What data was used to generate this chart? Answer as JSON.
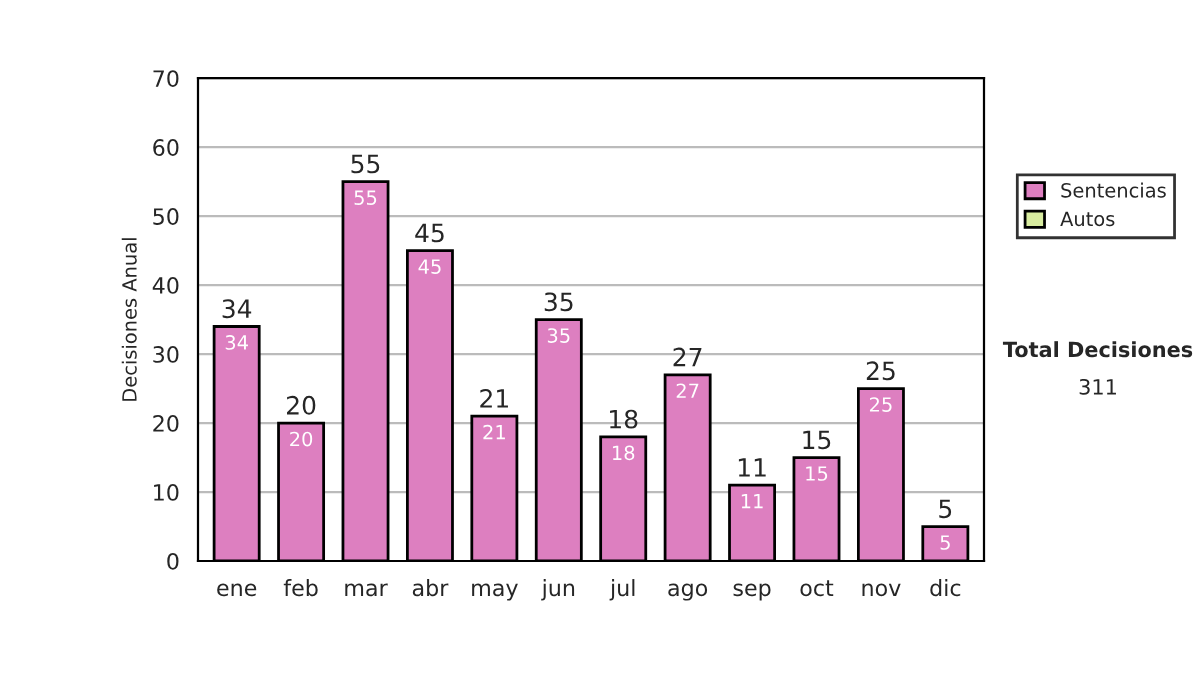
{
  "chart_data": {
    "type": "bar",
    "ylabel": "Decisiones Anual",
    "categories": [
      "ene",
      "feb",
      "mar",
      "abr",
      "may",
      "jun",
      "jul",
      "ago",
      "sep",
      "oct",
      "nov",
      "dic"
    ],
    "series": [
      {
        "name": "Sentencias",
        "color": "#dd7fc0",
        "values": [
          34,
          20,
          55,
          45,
          21,
          35,
          18,
          27,
          11,
          15,
          25,
          5
        ]
      },
      {
        "name": "Autos",
        "color": "#d8eca0",
        "values": [
          null,
          null,
          null,
          null,
          null,
          null,
          null,
          null,
          null,
          null,
          null,
          null
        ]
      }
    ],
    "stacked": true,
    "data_labels": true,
    "totals": [
      "34",
      "20",
      "55",
      "45",
      "21",
      "35",
      "18",
      "27",
      "11",
      "15",
      "25",
      "5"
    ],
    "ylim": [
      0,
      70
    ],
    "yticks": [
      0,
      10,
      20,
      30,
      40,
      50,
      60,
      70
    ],
    "grid": "y",
    "legend": "right",
    "annotations": [
      "Total Decisiones",
      "311"
    ]
  }
}
